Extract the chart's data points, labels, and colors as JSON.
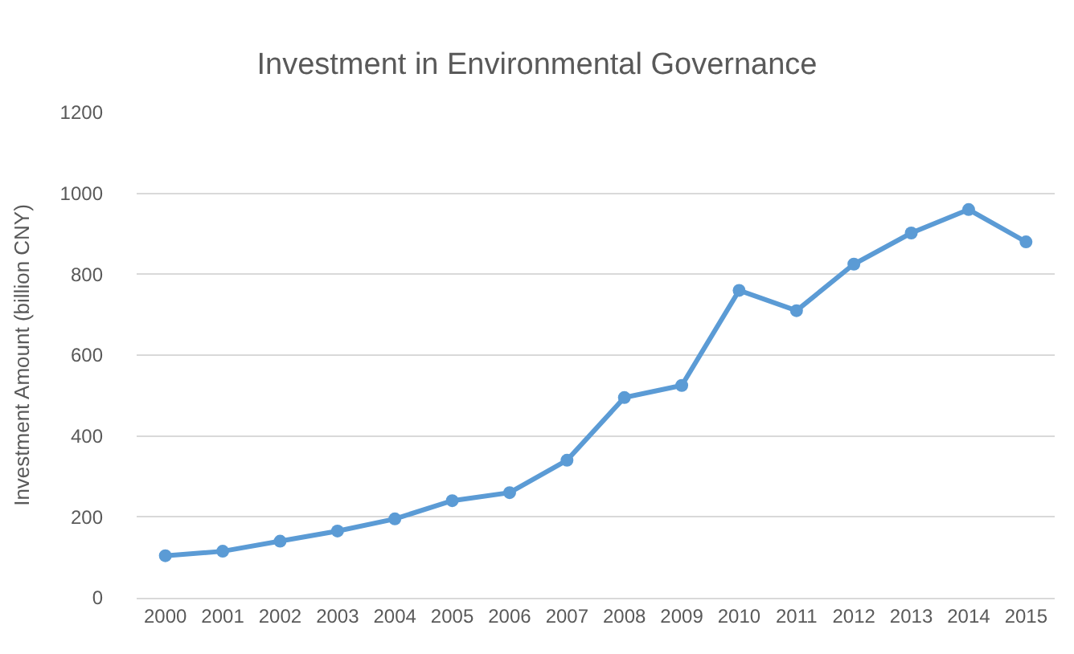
{
  "chart_data": {
    "type": "line",
    "title": "Investment in Environmental Governance",
    "ylabel": "Investment Amount (billion CNY)",
    "categories": [
      "2000",
      "2001",
      "2002",
      "2003",
      "2004",
      "2005",
      "2006",
      "2007",
      "2008",
      "2009",
      "2010",
      "2011",
      "2012",
      "2013",
      "2014",
      "2015"
    ],
    "series": [
      {
        "color": "#5b9bd5",
        "values": [
          104,
          115,
          140,
          165,
          195,
          240,
          260,
          340,
          495,
          525,
          760,
          710,
          825,
          902,
          960,
          880
        ]
      }
    ],
    "ylim": [
      0,
      1200
    ],
    "yticks": [
      0,
      200,
      400,
      600,
      800,
      1000,
      1200
    ],
    "grid": "y",
    "marker": "circle",
    "line_style": "solid"
  }
}
